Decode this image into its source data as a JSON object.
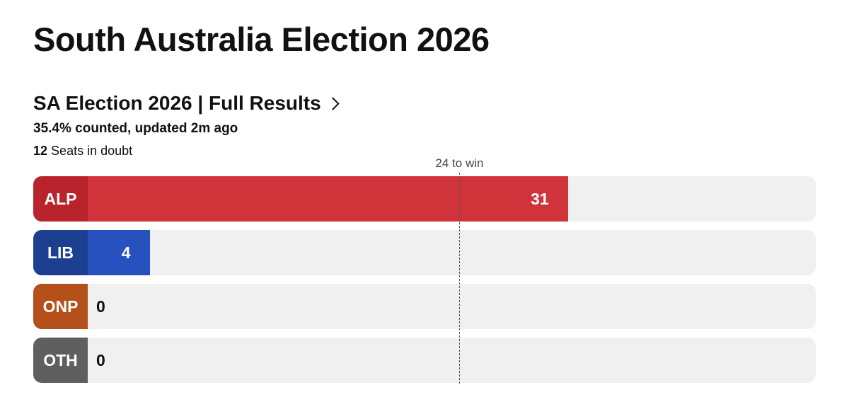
{
  "title": "South Australia Election 2026",
  "results_link": "SA Election 2026 | Full Results",
  "counted_text": "35.4% counted, updated 2m ago",
  "seats_in_doubt": {
    "number": "12",
    "label": "Seats in doubt"
  },
  "colors": {
    "ALP": {
      "label_bg": "#b8232c",
      "bar": "#d0343a"
    },
    "LIB": {
      "label_bg": "#1c3f8f",
      "bar": "#2651be"
    },
    "ONP": {
      "label_bg": "#b5501a",
      "bar": "#c96022"
    },
    "OTH": {
      "label_bg": "#5f5f5f",
      "bar": "#777777"
    },
    "track": "#f0f0f0"
  },
  "chart_data": {
    "type": "bar",
    "orientation": "horizontal",
    "categories": [
      "ALP",
      "LIB",
      "ONP",
      "OTH"
    ],
    "values": [
      31,
      4,
      0,
      0
    ],
    "total_seats": 47,
    "threshold": {
      "value": 24,
      "label": "24 to win"
    },
    "xlim": [
      0,
      47
    ]
  }
}
